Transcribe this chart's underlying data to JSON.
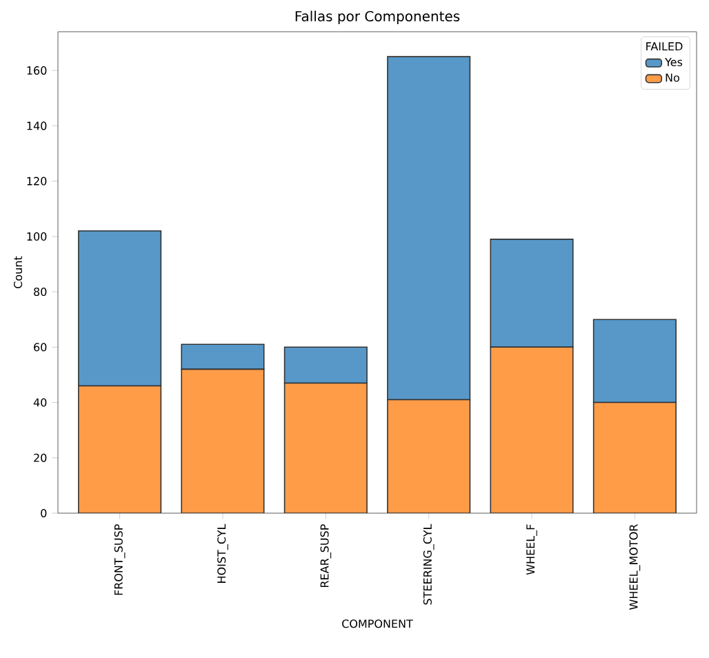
{
  "chart_data": {
    "type": "bar",
    "title": "Fallas por Componentes",
    "xlabel": "COMPONENT",
    "ylabel": "Count",
    "legend_title": "FAILED",
    "categories": [
      "FRONT_SUSP",
      "HOIST_CYL",
      "REAR_SUSP",
      "STEERING_CYL",
      "WHEEL_F",
      "WHEEL_MOTOR"
    ],
    "series": [
      {
        "name": "No",
        "color": "#fe9c48",
        "values": [
          46,
          52,
          47,
          41,
          60,
          40
        ]
      },
      {
        "name": "Yes",
        "color": "#5798c8",
        "values": [
          56,
          9,
          13,
          124,
          39,
          30
        ]
      }
    ],
    "stacked": true,
    "ylim": [
      0,
      174
    ],
    "yticks": [
      0,
      20,
      40,
      60,
      80,
      100,
      120,
      140,
      160
    ],
    "grid": false,
    "legend": "top right"
  }
}
